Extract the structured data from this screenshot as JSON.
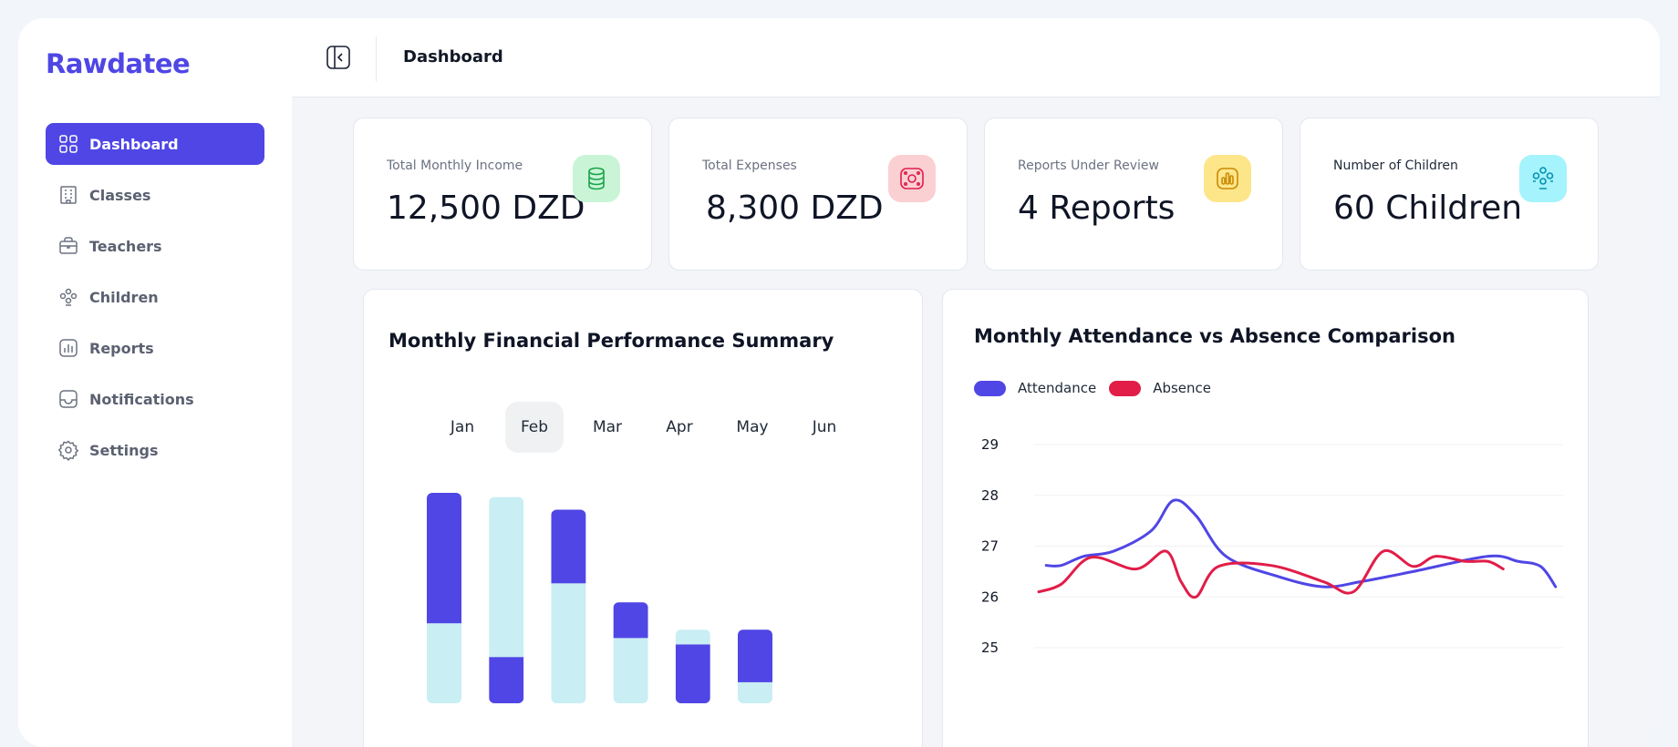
{
  "app": {
    "name": "Rawdatee"
  },
  "nav": {
    "items": [
      {
        "label": "Dashboard",
        "icon": "grid-icon",
        "active": true
      },
      {
        "label": "Classes",
        "icon": "building-icon",
        "active": false
      },
      {
        "label": "Teachers",
        "icon": "briefcase-icon",
        "active": false
      },
      {
        "label": "Children",
        "icon": "people-icon",
        "active": false
      },
      {
        "label": "Reports",
        "icon": "chart-icon",
        "active": false
      },
      {
        "label": "Notifications",
        "icon": "inbox-icon",
        "active": false
      },
      {
        "label": "Settings",
        "icon": "gear-icon",
        "active": false
      }
    ]
  },
  "header": {
    "title": "Dashboard",
    "collapse_icon": "sidebar-collapse-icon"
  },
  "stats": [
    {
      "label": "Total Monthly Income",
      "value": "12,500 DZD",
      "icon": "coins-icon",
      "bg": "#c9f5d6",
      "color": "#16a34a"
    },
    {
      "label": "Total Expenses",
      "value": "8,300 DZD",
      "icon": "money-icon",
      "bg": "#fbd0d3",
      "color": "#e11d48"
    },
    {
      "label": "Reports Under Review",
      "value": "4 Reports",
      "icon": "chart-icon",
      "bg": "#fde68a",
      "color": "#ca8a04"
    },
    {
      "label": "Number of Children",
      "value": "60 Children",
      "icon": "people-icon",
      "bg": "#a5f3fc",
      "color": "#0891b2"
    }
  ],
  "finance_card": {
    "title": "Monthly Financial Performance Summary",
    "months": [
      "Jan",
      "Feb",
      "Mar",
      "Apr",
      "May",
      "Jun"
    ],
    "active_month": "Feb"
  },
  "attendance_card": {
    "title": "Monthly Attendance vs Absence Comparison",
    "legend": [
      {
        "label": "Attendance",
        "color": "#4f46e5"
      },
      {
        "label": "Absence",
        "color": "#e11d48"
      }
    ]
  },
  "chart_data": [
    {
      "type": "bar",
      "categories": [
        "Jan",
        "Feb",
        "Mar",
        "Apr",
        "May",
        "Jun"
      ],
      "series": [
        {
          "values": [
            62,
            22,
            35,
            17,
            28,
            25
          ],
          "color": "#4f46e5"
        },
        {
          "values": [
            38,
            76,
            57,
            31,
            7,
            10
          ],
          "color": "#c9eef4"
        }
      ],
      "stack_order": [
        [
          "light",
          "dark"
        ],
        [
          "dark",
          "light"
        ],
        [
          "light",
          "dark"
        ],
        [
          "light",
          "dark"
        ],
        [
          "dark",
          "light"
        ],
        [
          "light",
          "dark"
        ]
      ],
      "ylim": [
        0,
        100
      ]
    },
    {
      "type": "line",
      "yticks": [
        29,
        28,
        27,
        26,
        25
      ],
      "ylim": [
        24.6,
        29.2
      ],
      "xlim": [
        0,
        1
      ],
      "series": [
        {
          "name": "Attendance",
          "color": "#4f46e5",
          "points": [
            [
              0.01,
              26.62
            ],
            [
              0.03,
              26.62
            ],
            [
              0.06,
              26.8
            ],
            [
              0.1,
              26.9
            ],
            [
              0.15,
              27.3
            ],
            [
              0.18,
              27.9
            ],
            [
              0.21,
              27.6
            ],
            [
              0.25,
              26.8
            ],
            [
              0.32,
              26.4
            ],
            [
              0.38,
              26.2
            ],
            [
              0.43,
              26.3
            ],
            [
              0.5,
              26.5
            ],
            [
              0.6,
              26.8
            ],
            [
              0.64,
              26.7
            ],
            [
              0.67,
              26.6
            ],
            [
              0.69,
              26.2
            ]
          ]
        },
        {
          "name": "Absence",
          "color": "#e11d48",
          "points": [
            [
              0.0,
              26.1
            ],
            [
              0.03,
              26.25
            ],
            [
              0.07,
              26.78
            ],
            [
              0.13,
              26.55
            ],
            [
              0.17,
              26.9
            ],
            [
              0.19,
              26.3
            ],
            [
              0.21,
              26.0
            ],
            [
              0.24,
              26.6
            ],
            [
              0.31,
              26.62
            ],
            [
              0.38,
              26.3
            ],
            [
              0.42,
              26.1
            ],
            [
              0.46,
              26.9
            ],
            [
              0.5,
              26.6
            ],
            [
              0.53,
              26.8
            ],
            [
              0.57,
              26.7
            ],
            [
              0.6,
              26.7
            ],
            [
              0.62,
              26.55
            ]
          ]
        }
      ]
    }
  ]
}
